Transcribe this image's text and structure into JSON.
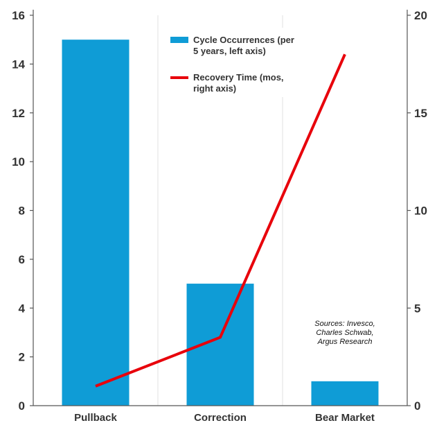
{
  "chart_data": {
    "type": "bar",
    "categories": [
      "Pullback",
      "Correction",
      "Bear Market"
    ],
    "series": [
      {
        "name": "Cycle Occurrences (per 5 years, left axis)",
        "type": "bar",
        "axis": "left",
        "color": "#0f9cd6",
        "values": [
          15,
          5,
          1
        ]
      },
      {
        "name": "Recovery Time (mos, right axis)",
        "type": "line",
        "axis": "right",
        "color": "#e8000b",
        "values": [
          1,
          3.5,
          18
        ]
      }
    ],
    "left_axis": {
      "ylim": [
        0,
        16
      ],
      "ticks": [
        "0",
        "2",
        "4",
        "6",
        "8",
        "10",
        "12",
        "14",
        "16"
      ]
    },
    "right_axis": {
      "ylim": [
        0,
        20
      ],
      "ticks": [
        "0",
        "5",
        "10",
        "15",
        "20"
      ]
    },
    "grid": "vertical",
    "legend_position": "top-center",
    "legend": {
      "bar_lines": [
        "Cycle Occurrences (per",
        "5 years, left axis)"
      ],
      "line_lines": [
        "Recovery Time (mos,",
        "right axis)"
      ]
    },
    "annotation": [
      "Sources: Invesco,",
      "Charles Schwab,",
      "Argus Research"
    ]
  }
}
